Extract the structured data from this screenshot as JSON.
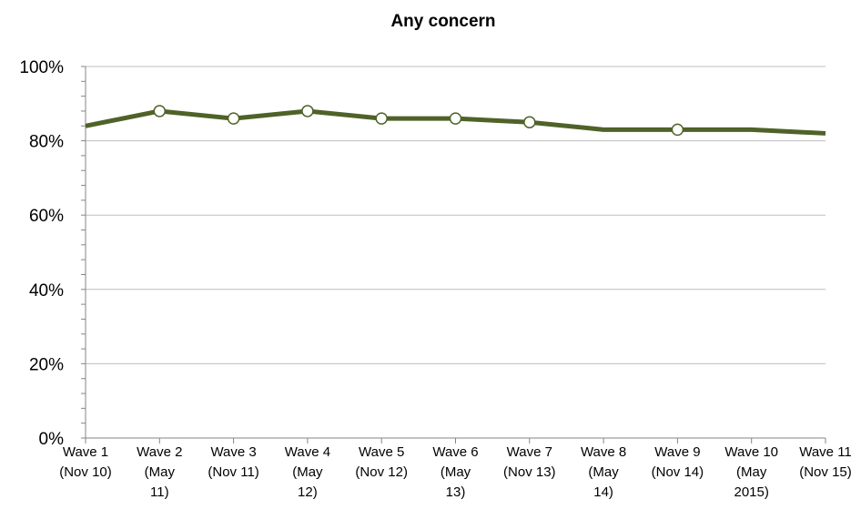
{
  "chart_data": {
    "type": "line",
    "title": "Any concern",
    "xlabel": "",
    "ylabel": "",
    "ylim": [
      0,
      100
    ],
    "yticks": [
      "0%",
      "20%",
      "40%",
      "60%",
      "80%",
      "100%"
    ],
    "grid": true,
    "legend": "none",
    "categories": [
      [
        "Wave 1",
        "(Nov 10)"
      ],
      [
        "Wave 2",
        "(May",
        "11)"
      ],
      [
        "Wave 3",
        "(Nov 11)"
      ],
      [
        "Wave 4",
        "(May",
        "12)"
      ],
      [
        "Wave 5",
        "(Nov 12)"
      ],
      [
        "Wave 6",
        "(May",
        "13)"
      ],
      [
        "Wave 7",
        "(Nov 13)"
      ],
      [
        "Wave 8",
        "(May",
        "14)"
      ],
      [
        "Wave 9",
        "(Nov 14)"
      ],
      [
        "Wave 10",
        "(May",
        "2015)"
      ],
      [
        "Wave 11",
        "(Nov 15)"
      ]
    ],
    "series": [
      {
        "values": [
          84,
          88,
          86,
          88,
          86,
          86,
          85,
          83,
          83,
          83,
          82
        ],
        "markers": [
          false,
          true,
          true,
          true,
          true,
          true,
          true,
          false,
          true,
          false,
          false
        ]
      }
    ],
    "colors": {
      "line": "#4f6228",
      "marker_fill": "#ffffff",
      "grid": "#bfbfbf",
      "axis": "#868686"
    }
  }
}
